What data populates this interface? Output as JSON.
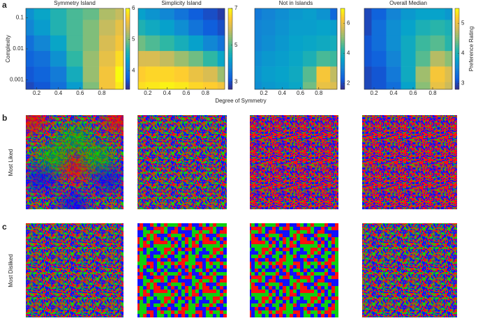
{
  "panel_labels": [
    "a",
    "b",
    "c"
  ],
  "row_labels": [
    "Most Liked",
    "Most Disliked"
  ],
  "shared_xlabel": "Degree of Symmetry",
  "chart_data": [
    {
      "type": "contour",
      "title": "Symmetry Island",
      "ylabel": "Complexity",
      "x": [
        0.1,
        0.25,
        0.4,
        0.55,
        0.7,
        0.85,
        1.0
      ],
      "y": [
        0.0005,
        0.0015,
        0.005,
        0.015,
        0.05,
        0.15
      ],
      "values": [
        [
          3.6,
          3.7,
          3.9,
          4.3,
          5.0,
          5.6,
          5.9
        ],
        [
          3.7,
          3.8,
          4.0,
          4.5,
          5.1,
          5.6,
          6.0
        ],
        [
          3.8,
          3.9,
          4.2,
          4.7,
          5.1,
          5.5,
          5.8
        ],
        [
          3.9,
          4.1,
          4.4,
          4.8,
          5.0,
          5.4,
          5.6
        ],
        [
          4.1,
          4.3,
          4.6,
          4.8,
          5.0,
          5.3,
          5.5
        ],
        [
          4.2,
          4.4,
          4.6,
          4.8,
          4.9,
          5.2,
          5.3
        ]
      ],
      "xlim": [
        0.1,
        1.0
      ],
      "ylim": [
        0.0005,
        0.2
      ],
      "yscale": "log",
      "xticks": [
        0.2,
        0.4,
        0.6,
        0.8
      ],
      "yticks": [
        0.001,
        0.01,
        0.1
      ],
      "clim": [
        3.4,
        6.0
      ],
      "cticks": [
        4,
        5,
        6
      ],
      "colormap": [
        "#352a87",
        "#0f5cdd",
        "#1481d6",
        "#06a4ca",
        "#2eb7a4",
        "#87bf77",
        "#d1bb59",
        "#fec832",
        "#f9fb0e"
      ]
    },
    {
      "type": "contour",
      "title": "Simplicity Island",
      "x": [
        0.1,
        0.25,
        0.4,
        0.55,
        0.7,
        0.85,
        1.0
      ],
      "y": [
        0.0005,
        0.0015,
        0.005,
        0.015,
        0.05,
        0.15
      ],
      "values": [
        [
          6.7,
          6.8,
          6.9,
          6.8,
          6.6,
          6.5,
          6.3
        ],
        [
          6.5,
          6.6,
          6.6,
          6.5,
          6.2,
          6.0,
          5.5
        ],
        [
          6.0,
          6.0,
          5.8,
          5.5,
          5.2,
          4.8,
          4.3
        ],
        [
          5.2,
          5.0,
          4.8,
          4.5,
          4.2,
          3.8,
          3.5
        ],
        [
          4.6,
          4.4,
          4.2,
          3.9,
          3.5,
          3.2,
          3.0
        ],
        [
          4.2,
          4.0,
          3.8,
          3.5,
          3.2,
          3.0,
          2.8
        ]
      ],
      "xlim": [
        0.1,
        1.0
      ],
      "ylim": [
        0.0005,
        0.2
      ],
      "yscale": "log",
      "xticks": [
        0.2,
        0.4,
        0.6,
        0.8
      ],
      "clim": [
        2.6,
        7.0
      ],
      "cticks": [
        3,
        5,
        7
      ],
      "colormap": [
        "#352a87",
        "#0f5cdd",
        "#1481d6",
        "#06a4ca",
        "#2eb7a4",
        "#87bf77",
        "#d1bb59",
        "#fec832",
        "#f9fb0e"
      ]
    },
    {
      "type": "contour",
      "title": "Not in Islands",
      "x": [
        0.1,
        0.25,
        0.4,
        0.55,
        0.7,
        0.85,
        1.0
      ],
      "y": [
        0.0005,
        0.0015,
        0.005,
        0.015,
        0.05,
        0.15
      ],
      "values": [
        [
          3.2,
          3.4,
          3.5,
          3.7,
          4.8,
          6.0,
          5.8
        ],
        [
          3.3,
          3.5,
          3.6,
          3.8,
          4.6,
          6.2,
          5.5
        ],
        [
          3.2,
          3.4,
          3.5,
          3.7,
          4.0,
          4.5,
          4.4
        ],
        [
          3.0,
          3.2,
          3.4,
          3.6,
          3.7,
          3.8,
          3.9
        ],
        [
          3.0,
          3.1,
          3.3,
          3.5,
          3.5,
          3.6,
          3.5
        ],
        [
          2.8,
          3.0,
          3.2,
          3.4,
          3.5,
          3.3,
          2.5
        ]
      ],
      "xlim": [
        0.1,
        1.0
      ],
      "ylim": [
        0.0005,
        0.2
      ],
      "yscale": "log",
      "xticks": [
        0.2,
        0.4,
        0.6,
        0.8
      ],
      "clim": [
        1.6,
        7.0
      ],
      "cticks": [
        2,
        4,
        6
      ],
      "colormap": [
        "#352a87",
        "#0f5cdd",
        "#1481d6",
        "#06a4ca",
        "#2eb7a4",
        "#87bf77",
        "#d1bb59",
        "#fec832",
        "#f9fb0e"
      ]
    },
    {
      "type": "contour",
      "title": "Overall Median",
      "colorbar_label": "Preference Rating",
      "x": [
        0.1,
        0.25,
        0.4,
        0.55,
        0.7,
        0.85,
        1.0
      ],
      "y": [
        0.0005,
        0.0015,
        0.005,
        0.015,
        0.05,
        0.15
      ],
      "values": [
        [
          3.0,
          3.1,
          3.3,
          3.8,
          4.5,
          5.0,
          4.8
        ],
        [
          3.0,
          3.1,
          3.4,
          3.9,
          4.6,
          5.1,
          4.9
        ],
        [
          3.1,
          3.2,
          3.5,
          3.9,
          4.3,
          4.7,
          4.5
        ],
        [
          3.1,
          3.3,
          3.6,
          3.9,
          4.2,
          4.3,
          4.1
        ],
        [
          3.0,
          3.3,
          3.6,
          3.8,
          4.0,
          4.1,
          4.0
        ],
        [
          3.0,
          3.2,
          3.5,
          3.7,
          3.8,
          3.8,
          3.7
        ]
      ],
      "xlim": [
        0.1,
        1.0
      ],
      "ylim": [
        0.0005,
        0.2
      ],
      "yscale": "log",
      "xticks": [
        0.2,
        0.4,
        0.6,
        0.8
      ],
      "clim": [
        2.8,
        5.5
      ],
      "cticks": [
        3,
        4,
        5
      ],
      "colormap": [
        "#352a87",
        "#0f5cdd",
        "#1481d6",
        "#06a4ca",
        "#2eb7a4",
        "#87bf77",
        "#d1bb59",
        "#fec832",
        "#f9fb0e"
      ]
    }
  ]
}
